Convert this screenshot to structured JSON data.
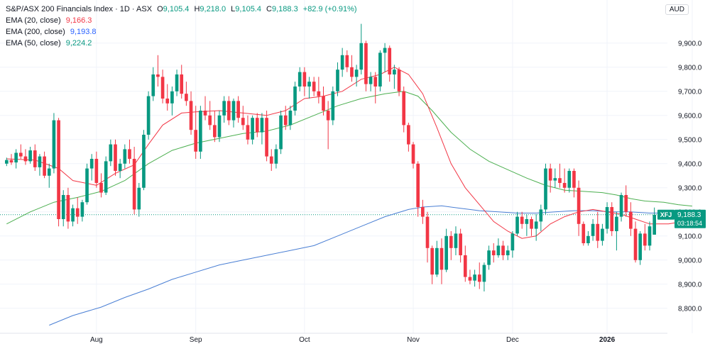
{
  "header": {
    "instrument": "S&P/ASX 200 Financials Index · 1D · ASX",
    "open_label": "O",
    "open": "9,105.4",
    "high_label": "H",
    "high": "9,218.0",
    "low_label": "L",
    "low": "9,105.4",
    "close_label": "C",
    "close": "9,188.3",
    "change": "+82.9 (+0.91%)"
  },
  "legend": [
    {
      "label": "EMA (20, close)",
      "value": "9,166.3",
      "color": "#f23645"
    },
    {
      "label": "EMA (200, close)",
      "value": "9,193.8",
      "color": "#2962ff"
    },
    {
      "label": "EMA (50, close)",
      "value": "9,224.2",
      "color": "#089981"
    }
  ],
  "currency": "AUD",
  "price_tag": {
    "symbol": "XFJ",
    "price": "9,188.3",
    "countdown": "03:18:54",
    "color": "#089981"
  },
  "colors": {
    "up": "#089981",
    "down": "#f23645",
    "ema20": "#f23645",
    "ema200": "#4a7fd4",
    "ema50": "#4caf50",
    "grid": "#f0f3fa"
  },
  "chart_data": {
    "type": "candlestick",
    "y_range": [
      8720,
      10020
    ],
    "y_ticks": [
      "8,800.0",
      "8,900.0",
      "9,000.0",
      "9,100.0",
      "9,200.0",
      "9,300.0",
      "9,400.0",
      "9,500.0",
      "9,600.0",
      "9,700.0",
      "9,800.0",
      "9,900.0"
    ],
    "x_labels": [
      {
        "label": "Aug",
        "index": 19,
        "bold": false
      },
      {
        "label": "Sep",
        "index": 40,
        "bold": false
      },
      {
        "label": "Oct",
        "index": 63,
        "bold": false
      },
      {
        "label": "Nov",
        "index": 86,
        "bold": false
      },
      {
        "label": "Dec",
        "index": 107,
        "bold": false
      },
      {
        "label": "2026",
        "index": 127,
        "bold": true
      },
      {
        "label": "",
        "index": 145,
        "bold": false
      }
    ],
    "candles": [
      [
        9400,
        9425,
        9390,
        9415
      ],
      [
        9415,
        9440,
        9395,
        9405
      ],
      [
        9405,
        9460,
        9380,
        9445
      ],
      [
        9445,
        9480,
        9420,
        9430
      ],
      [
        9430,
        9460,
        9395,
        9410
      ],
      [
        9410,
        9470,
        9400,
        9455
      ],
      [
        9455,
        9480,
        9370,
        9385
      ],
      [
        9385,
        9440,
        9350,
        9430
      ],
      [
        9430,
        9450,
        9340,
        9350
      ],
      [
        9350,
        9400,
        9300,
        9380
      ],
      [
        9380,
        9610,
        9360,
        9580
      ],
      [
        9580,
        9590,
        9140,
        9170
      ],
      [
        9170,
        9290,
        9140,
        9270
      ],
      [
        9270,
        9300,
        9130,
        9160
      ],
      [
        9160,
        9230,
        9140,
        9215
      ],
      [
        9215,
        9260,
        9150,
        9180
      ],
      [
        9180,
        9250,
        9160,
        9240
      ],
      [
        9240,
        9400,
        9230,
        9380
      ],
      [
        9380,
        9440,
        9330,
        9420
      ],
      [
        9420,
        9450,
        9300,
        9320
      ],
      [
        9320,
        9360,
        9260,
        9280
      ],
      [
        9280,
        9430,
        9270,
        9410
      ],
      [
        9410,
        9500,
        9390,
        9480
      ],
      [
        9480,
        9500,
        9350,
        9370
      ],
      [
        9370,
        9420,
        9340,
        9400
      ],
      [
        9400,
        9480,
        9380,
        9460
      ],
      [
        9460,
        9500,
        9400,
        9420
      ],
      [
        9420,
        9470,
        9190,
        9210
      ],
      [
        9210,
        9320,
        9180,
        9300
      ],
      [
        9300,
        9540,
        9290,
        9520
      ],
      [
        9520,
        9700,
        9500,
        9680
      ],
      [
        9680,
        9800,
        9660,
        9770
      ],
      [
        9770,
        9850,
        9720,
        9760
      ],
      [
        9760,
        9790,
        9650,
        9670
      ],
      [
        9670,
        9730,
        9620,
        9650
      ],
      [
        9650,
        9720,
        9600,
        9700
      ],
      [
        9700,
        9790,
        9680,
        9770
      ],
      [
        9770,
        9810,
        9670,
        9690
      ],
      [
        9690,
        9740,
        9640,
        9660
      ],
      [
        9660,
        9700,
        9520,
        9540
      ],
      [
        9540,
        9640,
        9420,
        9450
      ],
      [
        9450,
        9640,
        9420,
        9620
      ],
      [
        9620,
        9680,
        9580,
        9600
      ],
      [
        9600,
        9660,
        9540,
        9560
      ],
      [
        9560,
        9620,
        9490,
        9510
      ],
      [
        9510,
        9620,
        9490,
        9600
      ],
      [
        9600,
        9680,
        9570,
        9660
      ],
      [
        9660,
        9680,
        9560,
        9580
      ],
      [
        9580,
        9670,
        9550,
        9660
      ],
      [
        9660,
        9680,
        9570,
        9590
      ],
      [
        9590,
        9640,
        9540,
        9560
      ],
      [
        9560,
        9600,
        9480,
        9500
      ],
      [
        9500,
        9600,
        9480,
        9590
      ],
      [
        9590,
        9610,
        9510,
        9530
      ],
      [
        9530,
        9610,
        9480,
        9590
      ],
      [
        9590,
        9620,
        9410,
        9430
      ],
      [
        9430,
        9460,
        9370,
        9400
      ],
      [
        9400,
        9480,
        9380,
        9460
      ],
      [
        9460,
        9620,
        9440,
        9600
      ],
      [
        9600,
        9640,
        9540,
        9560
      ],
      [
        9560,
        9640,
        9540,
        9620
      ],
      [
        9620,
        9740,
        9600,
        9720
      ],
      [
        9720,
        9800,
        9700,
        9780
      ],
      [
        9780,
        9800,
        9680,
        9720
      ],
      [
        9720,
        9760,
        9670,
        9740
      ],
      [
        9740,
        9760,
        9680,
        9700
      ],
      [
        9700,
        9760,
        9650,
        9680
      ],
      [
        9680,
        9720,
        9600,
        9620
      ],
      [
        9620,
        9660,
        9460,
        9580
      ],
      [
        9580,
        9720,
        9560,
        9700
      ],
      [
        9700,
        9820,
        9680,
        9790
      ],
      [
        9790,
        9880,
        9760,
        9850
      ],
      [
        9850,
        9870,
        9780,
        9800
      ],
      [
        9800,
        9850,
        9740,
        9760
      ],
      [
        9760,
        9810,
        9720,
        9790
      ],
      [
        9790,
        9980,
        9770,
        9900
      ],
      [
        9900,
        9910,
        9700,
        9730
      ],
      [
        9730,
        9780,
        9700,
        9760
      ],
      [
        9760,
        9780,
        9650,
        9720
      ],
      [
        9720,
        9870,
        9700,
        9860
      ],
      [
        9860,
        9900,
        9780,
        9880
      ],
      [
        9880,
        9890,
        9740,
        9770
      ],
      [
        9770,
        9810,
        9710,
        9790
      ],
      [
        9790,
        9800,
        9680,
        9700
      ],
      [
        9700,
        9720,
        9530,
        9560
      ],
      [
        9560,
        9570,
        9450,
        9480
      ],
      [
        9480,
        9490,
        9380,
        9400
      ],
      [
        9400,
        9410,
        9180,
        9220
      ],
      [
        9220,
        9250,
        9150,
        9180
      ],
      [
        9180,
        9200,
        8990,
        9050
      ],
      [
        9050,
        9060,
        8900,
        8940
      ],
      [
        8940,
        9080,
        8930,
        9050
      ],
      [
        9050,
        9090,
        8900,
        8960
      ],
      [
        8960,
        9130,
        8950,
        9100
      ],
      [
        9100,
        9120,
        9000,
        9050
      ],
      [
        9050,
        9140,
        9020,
        9110
      ],
      [
        9110,
        9130,
        8990,
        9020
      ],
      [
        9020,
        9060,
        8910,
        8930
      ],
      [
        8930,
        8960,
        8900,
        8915
      ],
      [
        8915,
        8960,
        8890,
        8940
      ],
      [
        8940,
        8990,
        8880,
        8910
      ],
      [
        8910,
        8990,
        8870,
        8980
      ],
      [
        8980,
        9060,
        8960,
        9040
      ],
      [
        9040,
        9070,
        8990,
        9020
      ],
      [
        9020,
        9090,
        9010,
        9060
      ],
      [
        9060,
        9080,
        9000,
        9020
      ],
      [
        9020,
        9060,
        9000,
        9040
      ],
      [
        9040,
        9120,
        9010,
        9110
      ],
      [
        9110,
        9200,
        9100,
        9180
      ],
      [
        9180,
        9200,
        9130,
        9150
      ],
      [
        9150,
        9190,
        9100,
        9170
      ],
      [
        9170,
        9180,
        9100,
        9130
      ],
      [
        9130,
        9190,
        9080,
        9160
      ],
      [
        9160,
        9230,
        9120,
        9210
      ],
      [
        9210,
        9400,
        9190,
        9380
      ],
      [
        9380,
        9400,
        9280,
        9330
      ],
      [
        9330,
        9380,
        9300,
        9340
      ],
      [
        9340,
        9400,
        9300,
        9320
      ],
      [
        9320,
        9380,
        9280,
        9300
      ],
      [
        9300,
        9380,
        9280,
        9370
      ],
      [
        9370,
        9380,
        9260,
        9300
      ],
      [
        9300,
        9330,
        9100,
        9150
      ],
      [
        9150,
        9160,
        9060,
        9070
      ],
      [
        9070,
        9120,
        9060,
        9100
      ],
      [
        9100,
        9170,
        9080,
        9150
      ],
      [
        9150,
        9200,
        9050,
        9080
      ],
      [
        9080,
        9150,
        9060,
        9130
      ],
      [
        9130,
        9240,
        9110,
        9220
      ],
      [
        9220,
        9240,
        9100,
        9120
      ],
      [
        9120,
        9200,
        9040,
        9180
      ],
      [
        9180,
        9280,
        9160,
        9270
      ],
      [
        9270,
        9310,
        9180,
        9200
      ],
      [
        9200,
        9240,
        9100,
        9130
      ],
      [
        9130,
        9160,
        8990,
        9000
      ],
      [
        9000,
        9120,
        8980,
        9110
      ],
      [
        9110,
        9150,
        9040,
        9060
      ],
      [
        9060,
        9160,
        9040,
        9140
      ],
      [
        9105.4,
        9218,
        9105.4,
        9188.3
      ]
    ],
    "ema20": [
      [
        0,
        9420
      ],
      [
        6,
        9415
      ],
      [
        11,
        9380
      ],
      [
        14,
        9330
      ],
      [
        19,
        9310
      ],
      [
        23,
        9360
      ],
      [
        27,
        9395
      ],
      [
        30,
        9480
      ],
      [
        33,
        9560
      ],
      [
        37,
        9610
      ],
      [
        40,
        9615
      ],
      [
        45,
        9620
      ],
      [
        50,
        9610
      ],
      [
        55,
        9600
      ],
      [
        59,
        9620
      ],
      [
        63,
        9670
      ],
      [
        67,
        9680
      ],
      [
        71,
        9700
      ],
      [
        75,
        9750
      ],
      [
        79,
        9770
      ],
      [
        82,
        9800
      ],
      [
        85,
        9770
      ],
      [
        88,
        9690
      ],
      [
        91,
        9550
      ],
      [
        94,
        9400
      ],
      [
        97,
        9300
      ],
      [
        100,
        9230
      ],
      [
        103,
        9160
      ],
      [
        106,
        9120
      ],
      [
        109,
        9090
      ],
      [
        112,
        9100
      ],
      [
        115,
        9150
      ],
      [
        118,
        9180
      ],
      [
        121,
        9200
      ],
      [
        124,
        9210
      ],
      [
        127,
        9200
      ],
      [
        130,
        9190
      ],
      [
        133,
        9170
      ],
      [
        136,
        9150
      ],
      [
        140,
        9150
      ],
      [
        145,
        9166
      ]
    ],
    "ema50": [
      [
        0,
        9150
      ],
      [
        5,
        9200
      ],
      [
        10,
        9240
      ],
      [
        15,
        9260
      ],
      [
        20,
        9285
      ],
      [
        25,
        9330
      ],
      [
        30,
        9400
      ],
      [
        35,
        9455
      ],
      [
        40,
        9485
      ],
      [
        45,
        9505
      ],
      [
        50,
        9525
      ],
      [
        55,
        9535
      ],
      [
        60,
        9560
      ],
      [
        65,
        9600
      ],
      [
        70,
        9640
      ],
      [
        75,
        9670
      ],
      [
        80,
        9690
      ],
      [
        84,
        9700
      ],
      [
        87,
        9680
      ],
      [
        90,
        9620
      ],
      [
        94,
        9530
      ],
      [
        98,
        9460
      ],
      [
        102,
        9410
      ],
      [
        106,
        9375
      ],
      [
        110,
        9340
      ],
      [
        114,
        9310
      ],
      [
        118,
        9290
      ],
      [
        122,
        9285
      ],
      [
        126,
        9280
      ],
      [
        129,
        9270
      ],
      [
        132,
        9255
      ],
      [
        135,
        9245
      ],
      [
        139,
        9240
      ],
      [
        142,
        9230
      ],
      [
        145,
        9224
      ]
    ],
    "ema200": [
      [
        9,
        8730
      ],
      [
        14,
        8770
      ],
      [
        20,
        8805
      ],
      [
        25,
        8845
      ],
      [
        30,
        8880
      ],
      [
        35,
        8920
      ],
      [
        40,
        8950
      ],
      [
        45,
        8980
      ],
      [
        50,
        9000
      ],
      [
        55,
        9020
      ],
      [
        60,
        9040
      ],
      [
        65,
        9060
      ],
      [
        70,
        9100
      ],
      [
        75,
        9140
      ],
      [
        80,
        9180
      ],
      [
        85,
        9210
      ],
      [
        88,
        9220
      ],
      [
        92,
        9225
      ],
      [
        96,
        9215
      ],
      [
        100,
        9205
      ],
      [
        104,
        9200
      ],
      [
        108,
        9195
      ],
      [
        112,
        9195
      ],
      [
        116,
        9200
      ],
      [
        120,
        9205
      ],
      [
        124,
        9205
      ],
      [
        128,
        9200
      ],
      [
        132,
        9200
      ],
      [
        136,
        9195
      ],
      [
        140,
        9195
      ],
      [
        145,
        9194
      ]
    ]
  }
}
